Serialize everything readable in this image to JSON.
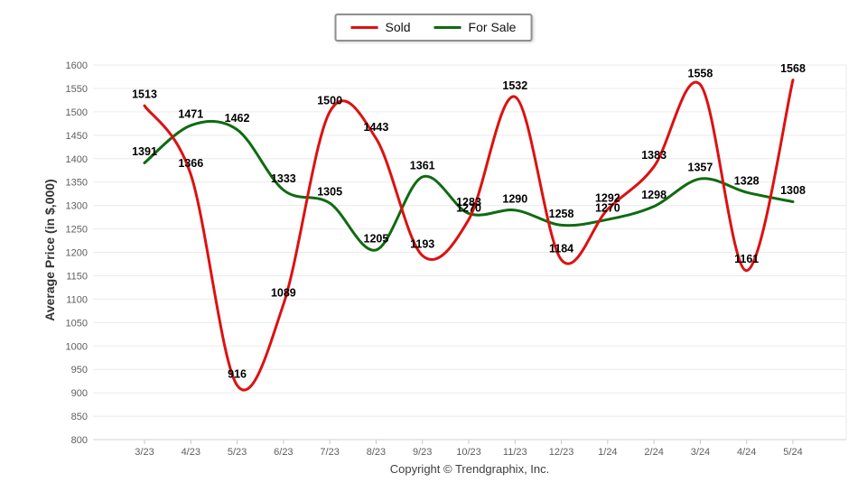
{
  "legend": {
    "items": [
      {
        "label": "Sold",
        "color": "#dd1111"
      },
      {
        "label": "For Sale",
        "color": "#0e6b10"
      }
    ]
  },
  "chart_data": {
    "type": "line",
    "title": "",
    "xlabel": "",
    "ylabel": "Average Price (in $,000)",
    "ylim": [
      800,
      1600
    ],
    "ytick_step": 50,
    "grid": "horizontal",
    "legend_position": "top-center",
    "smoothing": "spline",
    "categories": [
      "3/23",
      "4/23",
      "5/23",
      "6/23",
      "7/23",
      "8/23",
      "9/23",
      "10/23",
      "11/23",
      "12/23",
      "1/24",
      "2/24",
      "3/24",
      "4/24",
      "5/24"
    ],
    "series": [
      {
        "name": "Sold",
        "color": "#dd1111",
        "values": [
          1513,
          1366,
          916,
          1089,
          1500,
          1443,
          1193,
          1270,
          1532,
          1184,
          1292,
          1383,
          1558,
          1161,
          1568
        ]
      },
      {
        "name": "For Sale",
        "color": "#0e6b10",
        "values": [
          1391,
          1471,
          1462,
          1333,
          1305,
          1205,
          1361,
          1283,
          1290,
          1258,
          1270,
          1298,
          1357,
          1328,
          1308
        ]
      }
    ],
    "colors": {
      "grid_line": "#ebebeb",
      "axis_line": "#d2d2d2",
      "tick_mark": "#c9c9c9",
      "tick_text": "#5e5e5e",
      "label_text": "#000000"
    }
  },
  "footer": {
    "copyright": "Copyright © Trendgraphix, Inc."
  }
}
